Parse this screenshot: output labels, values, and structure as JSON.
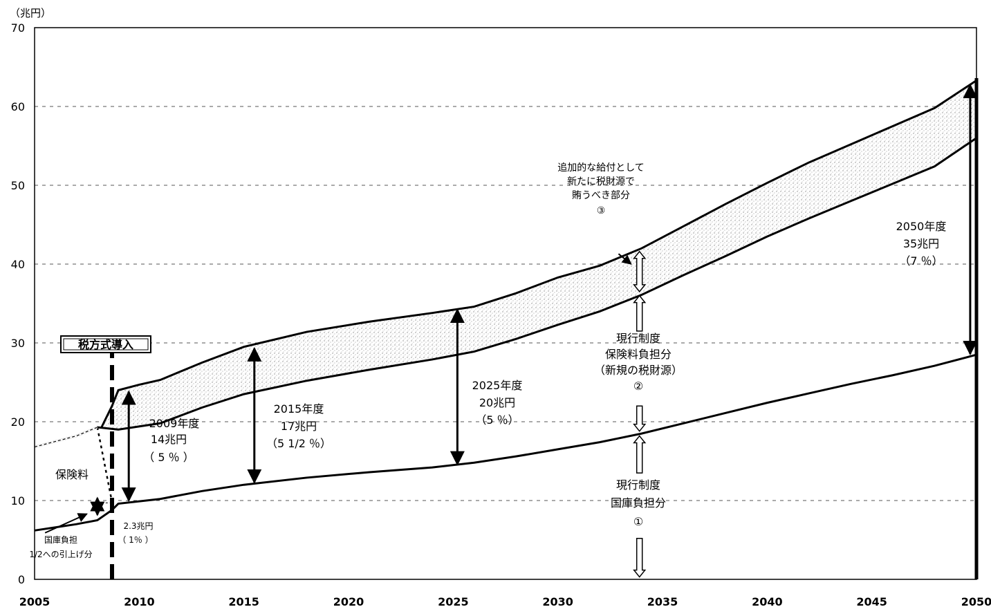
{
  "chart_data": {
    "type": "line",
    "unit_label": "（兆円）",
    "xlim": [
      2005,
      2050
    ],
    "ylim": [
      0,
      70
    ],
    "x_ticks": [
      "2005",
      "2010",
      "2015",
      "2020",
      "2025",
      "2030",
      "2035",
      "2040",
      "2045",
      "2050"
    ],
    "y_ticks": [
      "0",
      "10",
      "20",
      "30",
      "40",
      "50",
      "60",
      "70"
    ],
    "grid": "dashed horizontal",
    "series": [
      {
        "x": [
          2005,
          2007,
          2008,
          2008.7,
          2009,
          2011,
          2013,
          2015,
          2018,
          2021,
          2024,
          2026,
          2028,
          2030,
          2032,
          2034,
          2036,
          2038,
          2040,
          2042,
          2044,
          2046,
          2048,
          2050
        ],
        "values": [
          6.2,
          7.0,
          7.5,
          8.8,
          9.6,
          10.2,
          11.2,
          12.0,
          12.9,
          13.6,
          14.2,
          14.8,
          15.6,
          16.5,
          17.4,
          18.5,
          19.8,
          21.1,
          22.4,
          23.6,
          24.8,
          25.9,
          27.1,
          28.5
        ]
      },
      {
        "x": [
          2005,
          2007,
          2008,
          2009,
          2011,
          2013,
          2015,
          2018,
          2021,
          2024,
          2026,
          2028,
          2030,
          2032,
          2034,
          2036,
          2038,
          2040,
          2042,
          2044,
          2046,
          2048,
          2050
        ],
        "values": [
          16.8,
          18.2,
          19.3,
          19.0,
          19.8,
          21.8,
          23.5,
          25.2,
          26.6,
          27.9,
          28.9,
          30.5,
          32.3,
          34.0,
          36.1,
          38.6,
          41.0,
          43.5,
          45.8,
          48.0,
          50.2,
          52.4,
          56.0
        ]
      },
      {
        "x": [
          2008.2,
          2008.7,
          2009,
          2010,
          2011,
          2013,
          2015,
          2018,
          2021,
          2024,
          2026,
          2028,
          2030,
          2032,
          2034,
          2036,
          2038,
          2040,
          2042,
          2044,
          2046,
          2048,
          2050
        ],
        "values": [
          19.3,
          22.0,
          24.0,
          24.7,
          25.3,
          27.5,
          29.5,
          31.4,
          32.7,
          33.8,
          34.6,
          36.3,
          38.3,
          39.8,
          42.0,
          44.8,
          47.6,
          50.3,
          52.9,
          55.2,
          57.5,
          59.8,
          63.3
        ]
      }
    ],
    "annotations": {
      "tax_box": "税方式導入",
      "label_2009": [
        "2009年度",
        "14兆円",
        "（ 5 ％ ）"
      ],
      "label_2015": [
        "2015年度",
        "17兆円",
        "（5 1/2 ％）"
      ],
      "label_2025": [
        "2025年度",
        "20兆円",
        "（5 ％）"
      ],
      "label_2050": [
        "2050年度",
        "35兆円",
        "（7 ％）"
      ],
      "label_small": [
        "2.3兆円",
        "（ 1％ ）"
      ],
      "label_hokenryo": "保険料",
      "label_kokko": [
        "国庫負担",
        "1/2への引上げ分"
      ],
      "label_3": [
        "追加的な給付として",
        "新たに税財源で",
        "賄うべき部分",
        "③"
      ],
      "label_2": [
        "現行制度",
        "保険料負担分",
        "（新規の税財源）",
        "②"
      ],
      "label_1": [
        "現行制度",
        "国庫負担分",
        "①"
      ]
    }
  }
}
